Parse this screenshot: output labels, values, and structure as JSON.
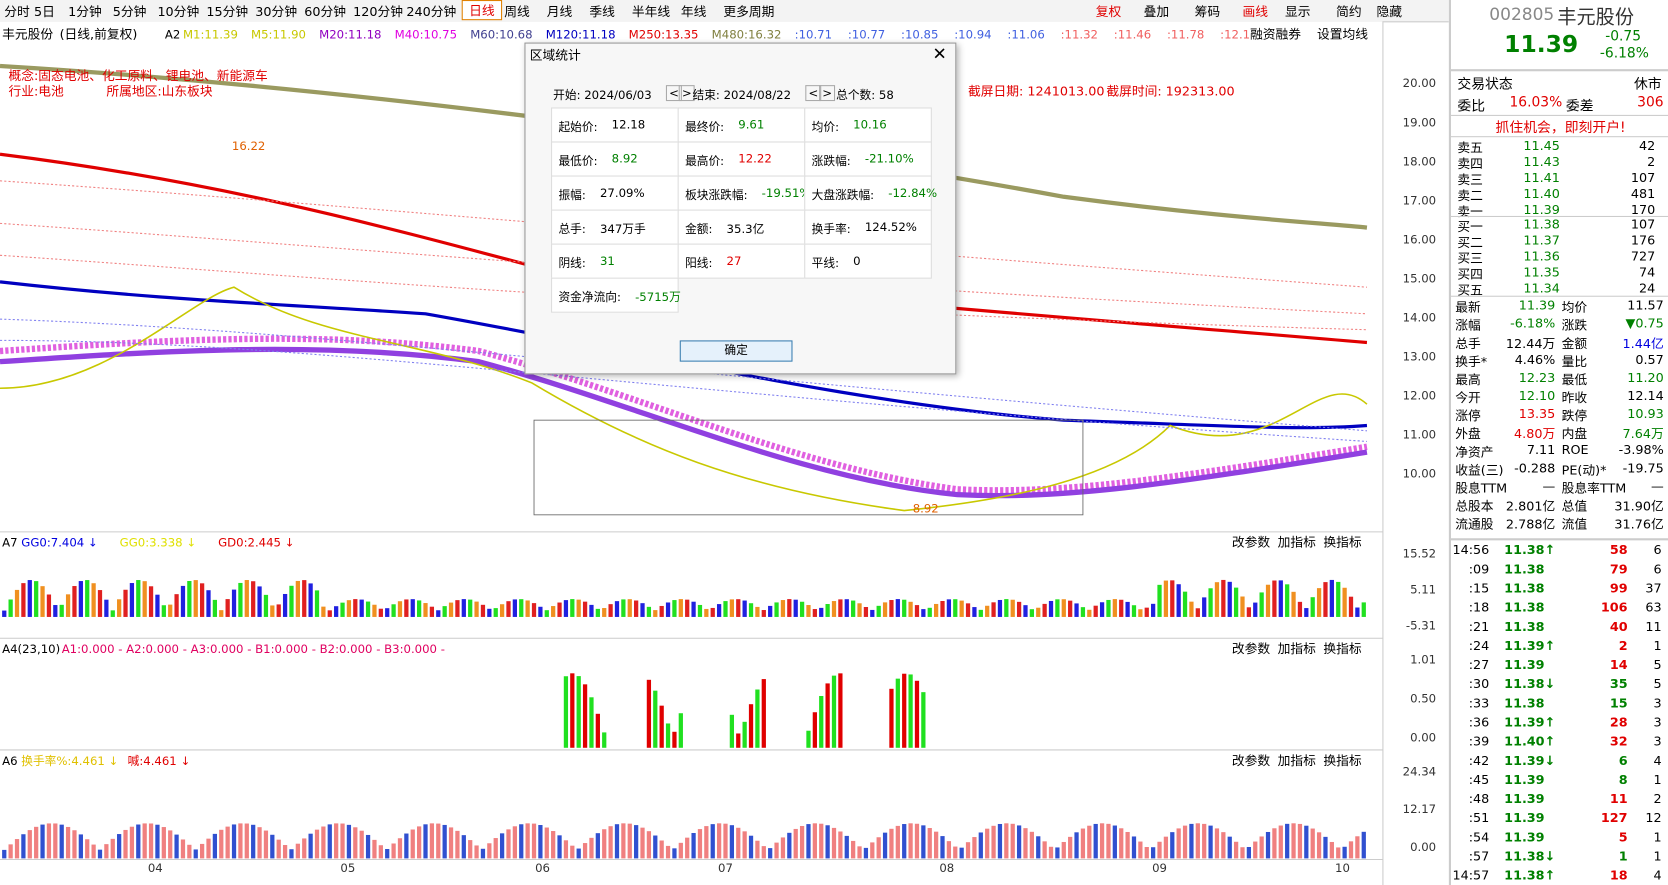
{
  "toolbar": {
    "periods": [
      "分时",
      "5日",
      "1分钟",
      "5分钟",
      "10分钟",
      "15分钟",
      "30分钟",
      "60分钟",
      "120分钟",
      "240分钟",
      "日线",
      "周线",
      "月线",
      "季线",
      "半年线",
      "年线",
      "更多周期"
    ],
    "tools": [
      "复权",
      "叠加",
      "筹码",
      "画线",
      "显示",
      "简约",
      "隐藏"
    ]
  },
  "chart": {
    "stock": "丰元股份",
    "mode": "(日线,前复权)",
    "indicator": "A2",
    "ma_labels": [
      {
        "text": "M1:11.39",
        "color": "#c8c800"
      },
      {
        "text": "M5:11.90",
        "color": "#c8c800"
      },
      {
        "text": "M20:11.18",
        "color": "#9000c0"
      },
      {
        "text": "M40:10.75",
        "color": "#e000e0"
      },
      {
        "text": "M60:10.68",
        "color": "#404090"
      },
      {
        "text": "M120:11.18",
        "color": "#0000c0"
      },
      {
        "text": "M250:13.35",
        "color": "#e00000"
      },
      {
        "text": "M480:16.32",
        "color": "#808040"
      },
      {
        "text": ":10.71",
        "color": "#4060e0"
      },
      {
        "text": ":10.77",
        "color": "#4060e0"
      },
      {
        "text": ":10.85",
        "color": "#4060e0"
      },
      {
        "text": ":10.94",
        "color": "#4060e0"
      },
      {
        "text": ":11.06",
        "color": "#4060e0"
      },
      {
        "text": ":11.32",
        "color": "#f06060"
      },
      {
        "text": ":11.46",
        "color": "#f06060"
      },
      {
        "text": ":11.78",
        "color": "#f06060"
      },
      {
        "text": ":12.1",
        "color": "#f06060"
      }
    ],
    "links": [
      "融资融券",
      "设置均线"
    ],
    "concept": "概念:固态电池、化工原料、锂电池、新能源车",
    "industry": "行业:电池",
    "region": "所属地区:山东板块",
    "screenshot_date": "截屏日期: 1241013.00",
    "screenshot_time": "截屏时间: 192313.00",
    "high_mark": "16.22",
    "low_mark": "8.92",
    "price_axis": [
      "20.00",
      "19.00",
      "18.00",
      "17.00",
      "16.00",
      "15.00",
      "14.00",
      "13.00",
      "12.00",
      "11.00",
      "10.00"
    ],
    "x_axis": [
      "04",
      "05",
      "06",
      "07",
      "08",
      "09",
      "10"
    ]
  },
  "panels": [
    {
      "title": "A7",
      "labels": [
        {
          "text": "GG0:7.404 ↓",
          "color": "#0000e0"
        },
        {
          "text": "GG0:3.338 ↓",
          "color": "#e0e000"
        },
        {
          "text": "GD0:2.445 ↓",
          "color": "#e00000"
        }
      ],
      "axis": [
        "15.52",
        "5.11",
        "-5.31"
      ]
    },
    {
      "title": "A4(23,10)",
      "labels": [
        {
          "text": "A1:0.000 - A2:0.000 - A3:0.000 - B1:0.000 - B2:0.000 - B3:0.000 -",
          "color": "#e00060"
        }
      ],
      "axis": [
        "1.01",
        "0.50",
        "0.00"
      ]
    },
    {
      "title": "A6",
      "labels": [
        {
          "text": "换手率%:4.461 ↓",
          "color": "#e0c000"
        },
        {
          "text": "喊:4.461 ↓",
          "color": "#e00000"
        }
      ],
      "axis": [
        "24.34",
        "12.17",
        "0.00"
      ]
    }
  ],
  "panel_buttons": [
    "改参数",
    "加指标",
    "换指标"
  ],
  "dialog": {
    "title": "区域统计",
    "start": "开始: 2024/06/03",
    "end": "结束: 2024/08/22",
    "count": "总个数: 58",
    "ok": "确定",
    "cells": [
      [
        {
          "label": "起始价:",
          "value": "12.18",
          "color": "#000"
        },
        {
          "label": "最终价:",
          "value": "9.61",
          "color": "#008000"
        },
        {
          "label": "均价:",
          "value": "10.16",
          "color": "#008000"
        }
      ],
      [
        {
          "label": "最低价:",
          "value": "8.92",
          "color": "#008000"
        },
        {
          "label": "最高价:",
          "value": "12.22",
          "color": "#e00000"
        },
        {
          "label": "涨跌幅:",
          "value": "-21.10%",
          "color": "#008000"
        }
      ],
      [
        {
          "label": "振幅:",
          "value": "27.09%",
          "color": "#000"
        },
        {
          "label": "板块涨跌幅:",
          "value": "-19.51%",
          "color": "#008000"
        },
        {
          "label": "大盘涨跌幅:",
          "value": "-12.84%",
          "color": "#008000"
        }
      ],
      [
        {
          "label": "总手:",
          "value": "347万手",
          "color": "#000"
        },
        {
          "label": "金额:",
          "value": "35.3亿",
          "color": "#000"
        },
        {
          "label": "换手率:",
          "value": "124.52%",
          "color": "#000"
        }
      ],
      [
        {
          "label": "阴线:",
          "value": "31",
          "color": "#008000"
        },
        {
          "label": "阳线:",
          "value": "27",
          "color": "#e00000"
        },
        {
          "label": "平线:",
          "value": "0",
          "color": "#000"
        }
      ],
      [
        {
          "label": "资金净流向:",
          "value": "-5715万",
          "color": "#008000"
        }
      ]
    ]
  },
  "quote": {
    "code": "002805",
    "name": "丰元股份",
    "price": "11.39",
    "change": "-0.75",
    "pct": "-6.18%",
    "status_label": "交易状态",
    "status": "休市",
    "wb_label": "委比",
    "wb": "16.03%",
    "wc_label": "委差",
    "wc": "306",
    "banner": "抓住机会，即刻开户!",
    "asks": [
      [
        "卖五",
        "11.45",
        "42"
      ],
      [
        "卖四",
        "11.43",
        "2"
      ],
      [
        "卖三",
        "11.41",
        "107"
      ],
      [
        "卖二",
        "11.40",
        "481"
      ],
      [
        "卖一",
        "11.39",
        "170"
      ]
    ],
    "bids": [
      [
        "买一",
        "11.38",
        "107"
      ],
      [
        "买二",
        "11.37",
        "176"
      ],
      [
        "买三",
        "11.36",
        "727"
      ],
      [
        "买四",
        "11.35",
        "74"
      ],
      [
        "买五",
        "11.34",
        "24"
      ]
    ],
    "stats": [
      {
        "l1": "最新",
        "v1": "11.39",
        "c1": "#008000",
        "l2": "均价",
        "v2": "11.57",
        "c2": "#000"
      },
      {
        "l1": "涨幅",
        "v1": "-6.18%",
        "c1": "#008000",
        "l2": "涨跌",
        "v2": "▼0.75",
        "c2": "#008000"
      },
      {
        "l1": "总手",
        "v1": "12.44万",
        "c1": "#000",
        "l2": "金额",
        "v2": "1.44亿",
        "c2": "#0000e0"
      },
      {
        "l1": "换手*",
        "v1": "4.46%",
        "c1": "#000",
        "l2": "量比",
        "v2": "0.57",
        "c2": "#000"
      },
      {
        "l1": "最高",
        "v1": "12.23",
        "c1": "#008000",
        "l2": "最低",
        "v2": "11.20",
        "c2": "#008000"
      },
      {
        "l1": "今开",
        "v1": "12.10",
        "c1": "#008000",
        "l2": "昨收",
        "v2": "12.14",
        "c2": "#000"
      },
      {
        "l1": "涨停",
        "v1": "13.35",
        "c1": "#e00000",
        "l2": "跌停",
        "v2": "10.93",
        "c2": "#008000"
      },
      {
        "l1": "外盘",
        "v1": "4.80万",
        "c1": "#e00000",
        "l2": "内盘",
        "v2": "7.64万",
        "c2": "#008000"
      },
      {
        "l1": "净资产",
        "v1": "7.11",
        "c1": "#000",
        "l2": "ROE",
        "v2": "-3.98%",
        "c2": "#000"
      },
      {
        "l1": "收益(三)",
        "v1": "-0.288",
        "c1": "#000",
        "l2": "PE(动)*",
        "v2": "-19.75",
        "c2": "#000"
      },
      {
        "l1": "股息TTM",
        "v1": "—",
        "c1": "#000",
        "l2": "股息率TTM",
        "v2": "—",
        "c2": "#000"
      },
      {
        "l1": "总股本",
        "v1": "2.801亿",
        "c1": "#000",
        "l2": "总值",
        "v2": "31.90亿",
        "c2": "#000"
      },
      {
        "l1": "流通股",
        "v1": "2.788亿",
        "c1": "#000",
        "l2": "流值",
        "v2": "31.76亿",
        "c2": "#000"
      }
    ],
    "ticks": [
      {
        "time": "14:56",
        "price": "11.38↑",
        "vol": "58",
        "n": "6",
        "color": "#e00000"
      },
      {
        "time": ":09",
        "price": "11.38",
        "vol": "79",
        "n": "6",
        "color": "#e00000"
      },
      {
        "time": ":15",
        "price": "11.38",
        "vol": "99",
        "n": "37",
        "color": "#e00000"
      },
      {
        "time": ":18",
        "price": "11.38",
        "vol": "106",
        "n": "63",
        "color": "#e00000"
      },
      {
        "time": ":21",
        "price": "11.38",
        "vol": "40",
        "n": "11",
        "color": "#e00000"
      },
      {
        "time": ":24",
        "price": "11.39↑",
        "vol": "2",
        "n": "1",
        "color": "#e00000"
      },
      {
        "time": ":27",
        "price": "11.39",
        "vol": "14",
        "n": "5",
        "color": "#e00000"
      },
      {
        "time": ":30",
        "price": "11.38↓",
        "vol": "35",
        "n": "5",
        "color": "#008000"
      },
      {
        "time": ":33",
        "price": "11.38",
        "vol": "15",
        "n": "3",
        "color": "#008000"
      },
      {
        "time": ":36",
        "price": "11.39↑",
        "vol": "28",
        "n": "3",
        "color": "#e00000"
      },
      {
        "time": ":39",
        "price": "11.40↑",
        "vol": "32",
        "n": "3",
        "color": "#e00000"
      },
      {
        "time": ":42",
        "price": "11.39↓",
        "vol": "6",
        "n": "4",
        "color": "#008000"
      },
      {
        "time": ":45",
        "price": "11.39",
        "vol": "8",
        "n": "1",
        "color": "#008000"
      },
      {
        "time": ":48",
        "price": "11.39",
        "vol": "11",
        "n": "2",
        "color": "#e00000"
      },
      {
        "time": ":51",
        "price": "11.39",
        "vol": "127",
        "n": "12",
        "color": "#e00000"
      },
      {
        "time": ":54",
        "price": "11.39",
        "vol": "5",
        "n": "1",
        "color": "#e00000"
      },
      {
        "time": ":57",
        "price": "11.38↓",
        "vol": "1",
        "n": "1",
        "color": "#008000"
      },
      {
        "time": "14:57",
        "price": "11.38↑",
        "vol": "18",
        "n": "4",
        "color": "#e00000"
      }
    ]
  }
}
